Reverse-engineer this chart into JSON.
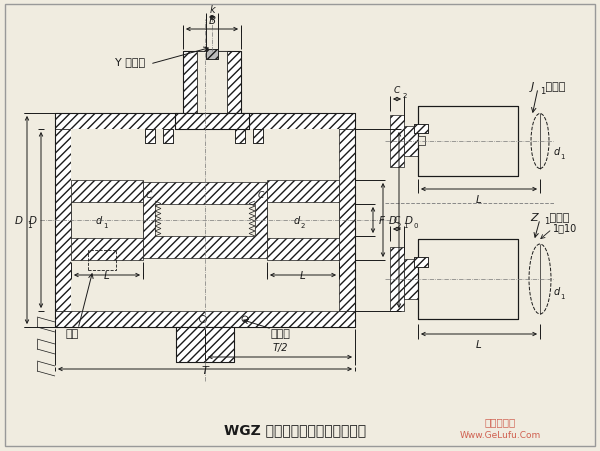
{
  "title": "WGZ 型带制动轮鼓形齿式联轴器",
  "watermark": "Www.GeLufu.Com",
  "watermark2": "格鲁夫机械",
  "bg_color": "#f0ece0",
  "line_color": "#1a1a1a",
  "title_fontsize": 9,
  "annotation_fontsize": 7.5
}
